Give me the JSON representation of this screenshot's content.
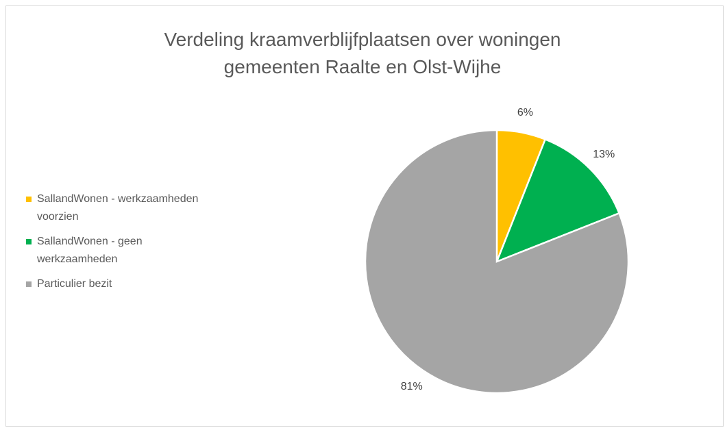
{
  "chart_data": {
    "type": "pie",
    "title": "Verdeling kraamverblijfplaatsen over woningen gemeenten Raalte en Olst-Wijhe",
    "categories": [
      "SallandWonen - werkzaamheden voorzien",
      "SallandWonen - geen werkzaamheden",
      "Particulier bezit"
    ],
    "values": [
      6,
      13,
      81
    ],
    "value_labels": [
      "6%",
      "13%",
      "81%"
    ],
    "colors": [
      "#ffc000",
      "#00b050",
      "#a5a5a5"
    ],
    "legend": "left"
  }
}
